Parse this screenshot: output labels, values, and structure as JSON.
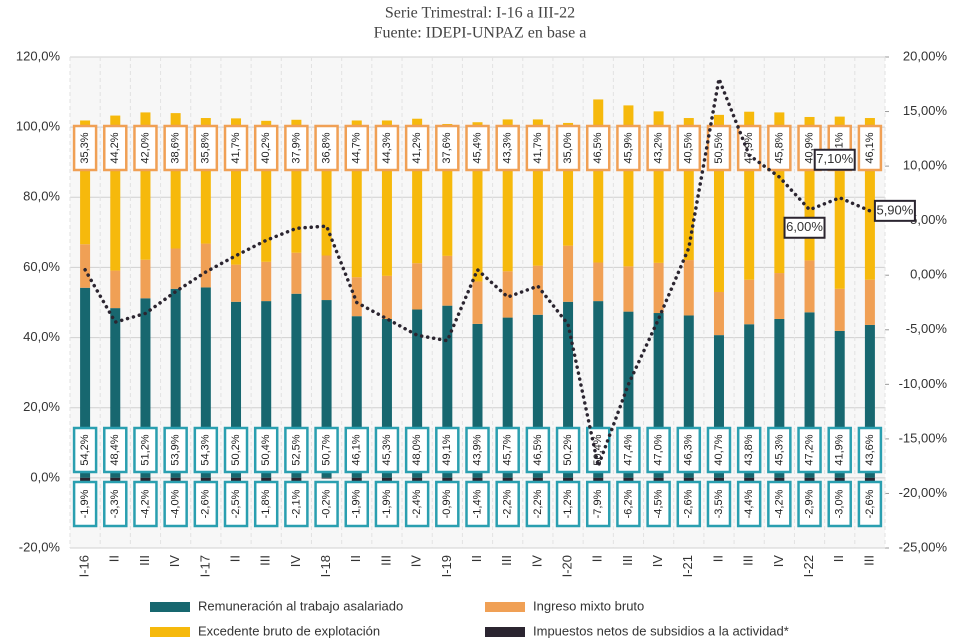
{
  "chart_data": {
    "type": "stacked-bar-line",
    "subtitle": "Serie Trimestral: I-16 a III-22",
    "source": "Fuente: IDEPI-UNPAZ en base a",
    "categories": [
      "I-16",
      "II",
      "III",
      "IV",
      "I-17",
      "II",
      "III",
      "IV",
      "I-18",
      "II",
      "III",
      "IV",
      "I-19",
      "II",
      "III",
      "IV",
      "I-20",
      "II",
      "III",
      "IV",
      "I-21",
      "II",
      "III",
      "IV",
      "I-22",
      "II",
      "III"
    ],
    "ylim": [
      -20,
      120
    ],
    "yticks": [
      {
        "value": 120,
        "label": "120,0%"
      },
      {
        "value": 100,
        "label": "100,0%"
      },
      {
        "value": 80,
        "label": "80,0%"
      },
      {
        "value": 60,
        "label": "60,0%"
      },
      {
        "value": 40,
        "label": "40,0%"
      },
      {
        "value": 20,
        "label": "20,0%"
      },
      {
        "value": 0,
        "label": "0,0%"
      },
      {
        "value": -20,
        "label": "-20,0%"
      }
    ],
    "y2lim": [
      -25,
      20
    ],
    "y2ticks": [
      {
        "value": 20,
        "label": "20,00%"
      },
      {
        "value": 15,
        "label": "15,00%"
      },
      {
        "value": 10,
        "label": "10,00%"
      },
      {
        "value": 5,
        "label": "5,00%"
      },
      {
        "value": 0,
        "label": "0,00%"
      },
      {
        "value": -5,
        "label": "-5,00%"
      },
      {
        "value": -10,
        "label": "-10,00%"
      },
      {
        "value": -15,
        "label": "-15,00%"
      },
      {
        "value": -20,
        "label": "-20,00%"
      },
      {
        "value": -25,
        "label": "-25,00%"
      }
    ],
    "grid": true,
    "series": [
      {
        "name": "Remuneración al trabajo asalariado",
        "color": "#17676f",
        "values": [
          54.2,
          48.4,
          51.2,
          53.9,
          54.3,
          50.2,
          50.4,
          52.5,
          50.7,
          46.1,
          45.3,
          48.0,
          49.1,
          43.9,
          45.7,
          46.5,
          50.2,
          50.4,
          47.4,
          47.0,
          46.3,
          40.7,
          43.8,
          45.3,
          47.2,
          41.9,
          43.6
        ],
        "value_labels": [
          "54,2%",
          "48,4%",
          "51,2%",
          "53,9%",
          "54,3%",
          "50,2%",
          "50,4%",
          "52,5%",
          "50,7%",
          "46,1%",
          "45,3%",
          "48,0%",
          "49,1%",
          "43,9%",
          "45,7%",
          "46,5%",
          "50,2%",
          "50,4%",
          "47,4%",
          "47,0%",
          "46,3%",
          "40,7%",
          "43,8%",
          "45,3%",
          "47,2%",
          "41,9%",
          "43,6%"
        ]
      },
      {
        "name": "Ingreso mixto bruto",
        "color": "#f0a055",
        "values": [
          12.4,
          10.7,
          11.0,
          11.5,
          12.5,
          10.6,
          11.2,
          11.7,
          12.7,
          11.1,
          12.3,
          13.2,
          14.2,
          12.1,
          13.2,
          14.0,
          16.0,
          11.0,
          12.9,
          14.3,
          15.8,
          12.3,
          12.7,
          13.1,
          14.8,
          12.0,
          12.9
        ]
      },
      {
        "name": "Excedente bruto de explotación",
        "color": "#f6b90c",
        "values": [
          35.3,
          44.2,
          42.0,
          38.6,
          35.8,
          41.7,
          40.2,
          37.9,
          36.8,
          44.7,
          44.3,
          41.2,
          37.6,
          45.4,
          43.3,
          41.7,
          35.0,
          46.5,
          45.9,
          43.2,
          40.5,
          50.5,
          47.9,
          45.8,
          40.9,
          49.1,
          46.1
        ],
        "value_labels": [
          "35,3%",
          "44,2%",
          "42,0%",
          "38,6%",
          "35,8%",
          "41,7%",
          "40,2%",
          "37,9%",
          "36,8%",
          "44,7%",
          "44,3%",
          "41,2%",
          "37,6%",
          "45,4%",
          "43,3%",
          "41,7%",
          "35,0%",
          "46,5%",
          "45,9%",
          "43,2%",
          "40,5%",
          "50,5%",
          "47,9%",
          "45,8%",
          "40,9%",
          "49,1%",
          "46,1%"
        ]
      },
      {
        "name": "Impuestos netos de subsidios a la actividad*",
        "color": "#2b2530",
        "values": [
          -1.9,
          -3.3,
          -4.2,
          -4.0,
          -2.6,
          -2.5,
          -1.8,
          -2.1,
          -0.2,
          -1.9,
          -1.9,
          -2.4,
          -0.9,
          -1.4,
          -2.2,
          -2.2,
          -1.2,
          -7.9,
          -6.2,
          -4.5,
          -2.6,
          -3.5,
          -4.4,
          -4.2,
          -2.9,
          -3.0,
          -2.6
        ],
        "value_labels": [
          "-1,9%",
          "-3,3%",
          "-4,2%",
          "-4,0%",
          "-2,6%",
          "-2,5%",
          "-1,8%",
          "-2,1%",
          "-0,2%",
          "-1,9%",
          "-1,9%",
          "-2,4%",
          "-0,9%",
          "-1,4%",
          "-2,2%",
          "-2,2%",
          "-1,2%",
          "-7,9%",
          "-6,2%",
          "-4,5%",
          "-2,6%",
          "-3,5%",
          "-4,4%",
          "-4,2%",
          "-2,9%",
          "-3,0%",
          "-2,6%"
        ]
      },
      {
        "type": "line",
        "axis": "y2",
        "color": "#2b2530",
        "values": [
          0.5,
          -4.3,
          -3.5,
          -1.5,
          0.3,
          1.8,
          3.2,
          4.3,
          4.5,
          -2.5,
          -4.0,
          -5.5,
          -6.0,
          0.5,
          -2.0,
          -1.0,
          -4.5,
          -17.5,
          -10.0,
          -4.0,
          2.5,
          18.0,
          11.0,
          9.0,
          6.0,
          7.1,
          5.9
        ],
        "value_labels": [
          null,
          null,
          null,
          null,
          null,
          null,
          null,
          null,
          null,
          null,
          null,
          null,
          null,
          null,
          null,
          null,
          null,
          null,
          null,
          null,
          null,
          null,
          null,
          null,
          "6,00%",
          "7,10%",
          "5,90%"
        ]
      }
    ]
  }
}
